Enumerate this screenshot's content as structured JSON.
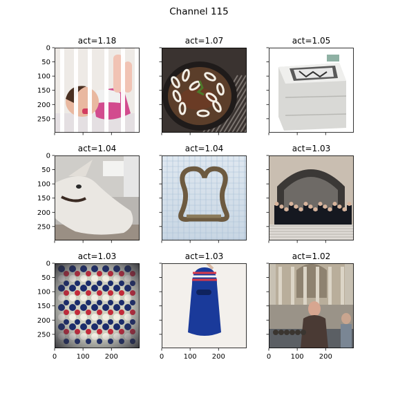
{
  "figure": {
    "title": "Channel 115"
  },
  "chart_data": {
    "type": "image_grid",
    "title": "Channel 115",
    "rows": 3,
    "cols": 3,
    "panels": [
      {
        "title": "act=1.18",
        "activation": 1.18,
        "image": "baby-in-crib"
      },
      {
        "title": "act=1.07",
        "activation": 1.07,
        "image": "steak-and-onions-in-pan"
      },
      {
        "title": "act=1.05",
        "activation": 1.05,
        "image": "laser-printer"
      },
      {
        "title": "act=1.04",
        "activation": 1.04,
        "image": "white-dog"
      },
      {
        "title": "act=1.04",
        "activation": 1.04,
        "image": "horseshoe-shaped-metal-object"
      },
      {
        "title": "act=1.03",
        "activation": 1.03,
        "image": "graduates-at-building-entrance"
      },
      {
        "title": "act=1.03",
        "activation": 1.03,
        "image": "rows-of-colored-items"
      },
      {
        "title": "act=1.03",
        "activation": 1.03,
        "image": "blue-balaclava"
      },
      {
        "title": "act=1.02",
        "activation": 1.02,
        "image": "woman-at-fountain"
      }
    ],
    "x_ticks": [
      0,
      100,
      200
    ],
    "y_ticks": [
      0,
      50,
      100,
      150,
      200,
      250
    ],
    "xlim": [
      0,
      299
    ],
    "ylim": [
      299,
      0
    ],
    "x_ticklabels_on": "bottom-row",
    "y_ticklabels_on": "left-column"
  }
}
